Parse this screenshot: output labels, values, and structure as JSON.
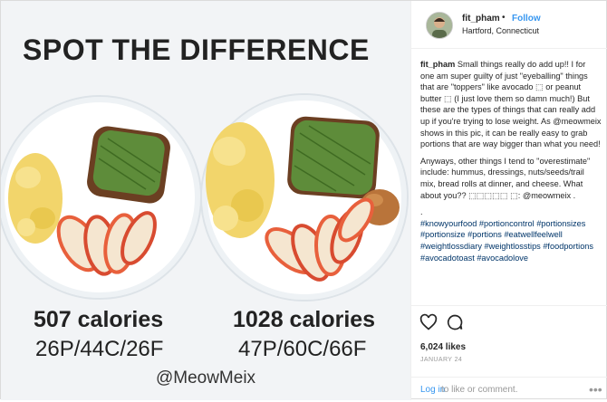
{
  "photo": {
    "headline": "SPOT THE DIFFERENCE",
    "left_calories": "507 calories",
    "left_macros": "26P/44C/26F",
    "right_calories": "1028 calories",
    "right_macros": "47P/60C/66F",
    "handle": "@MeowMeix"
  },
  "header": {
    "username": "fit_pham",
    "dot": "•",
    "follow": "Follow",
    "location": "Hartford, Connecticut"
  },
  "caption": {
    "username": "fit_pham",
    "para1": "Small things really do add up!! I for one am super guilty of just \"eyeballing\" things that are \"toppers\" like avocado ⬚ or peanut butter ⬚ (I just love them so damn much!) But these are the types of things that can really add up if you're trying to lose weight. As @meowmeix shows in this pic, it can be really easy to grab portions that are way bigger than what you need!",
    "para2": "Anyways, other things I tend to \"overestimate\" include: hummus, dressings, nuts/seeds/trail mix, bread rolls at dinner, and cheese. What about you?? ⬚⬚⬚⬚⬚ ⬚: @meowmeix .",
    "dot_line": ".",
    "hashtags": "#knowyourfood #portioncontrol #portionsizes #portionsize #portions #eatwellfeelwell #weightlossdiary #weightlosstips #foodportions #avocadotoast #avocadolove"
  },
  "actions": {
    "likes": "6,024 likes",
    "date": "JANUARY 24",
    "login_link": "Log in",
    "login_rest": "to like or comment.",
    "more": "•••"
  },
  "icons": [
    "heart-icon",
    "comment-icon",
    "more-options-icon"
  ],
  "colors": {
    "link_blue": "#3897f0",
    "hashtag": "#003569",
    "avocado": "#5e8c3a",
    "egg": "#f2d56b",
    "apple": "#e8603c",
    "toast": "#6b3f22",
    "peanut_butter": "#b9743a"
  }
}
